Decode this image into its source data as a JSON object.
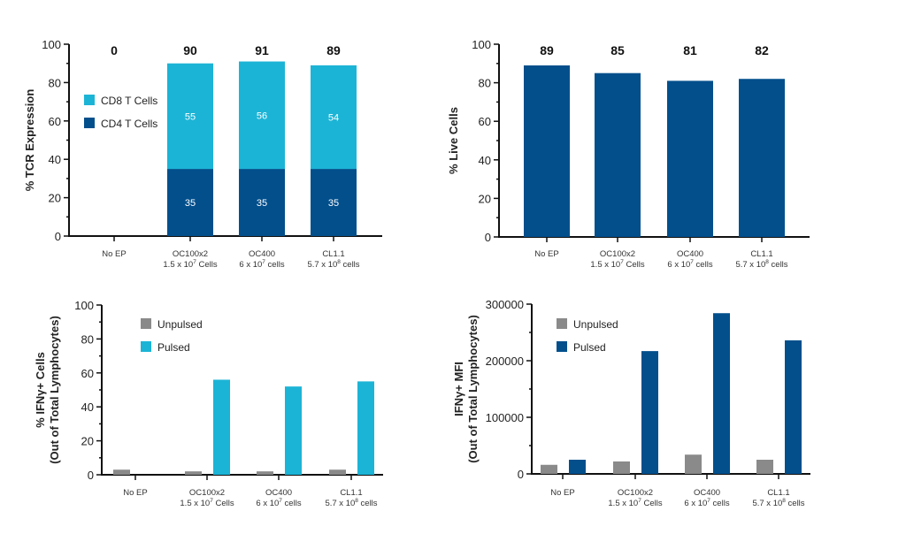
{
  "colors": {
    "cd8": "#1cb4d6",
    "cd4": "#024f8c",
    "live": "#024f8c",
    "unpulsed": "#8a8a8a",
    "pulsed_cyan": "#1cb4d6",
    "pulsed_blue": "#024f8c"
  },
  "chart_data": [
    {
      "id": "tcr",
      "type": "bar",
      "stacked": true,
      "title": "",
      "xlabel": "",
      "ylabel": "% TCR Expression",
      "ylim": [
        0,
        100
      ],
      "yticks": [
        0,
        20,
        40,
        60,
        80,
        100
      ],
      "ytick_labels": [
        "0",
        "20",
        "40",
        "60",
        "80",
        "100"
      ],
      "categories": [
        {
          "name": "No EP",
          "sub": "",
          "sup": "",
          "sub_after": ""
        },
        {
          "name": "OC100x2",
          "sub": "1.5 x 10",
          "sup": "7",
          "sub_after": " Cells"
        },
        {
          "name": "OC400",
          "sub": "6 x 10",
          "sup": "7",
          "sub_after": " cells"
        },
        {
          "name": "CL1.1",
          "sub": "5.7 x 10",
          "sup": "8",
          "sub_after": " cells"
        }
      ],
      "series": [
        {
          "name": "CD4 T Cells",
          "color_key": "cd4",
          "values": [
            0,
            35,
            35,
            35
          ],
          "labels": [
            "",
            "35",
            "35",
            "35"
          ]
        },
        {
          "name": "CD8 T Cells",
          "color_key": "cd8",
          "values": [
            0,
            55,
            56,
            54
          ],
          "labels": [
            "",
            "55",
            "56",
            "54"
          ]
        }
      ],
      "totals": [
        "0",
        "90",
        "91",
        "89"
      ],
      "legend": [
        {
          "name": "CD8 T Cells",
          "color_key": "cd8"
        },
        {
          "name": "CD4 T Cells",
          "color_key": "cd4"
        }
      ],
      "legend_position": "upper-left-inside",
      "grid": false
    },
    {
      "id": "live",
      "type": "bar",
      "stacked": false,
      "title": "",
      "xlabel": "",
      "ylabel": "% Live Cells",
      "ylim": [
        0,
        100
      ],
      "yticks": [
        0,
        20,
        40,
        60,
        80,
        100
      ],
      "ytick_labels": [
        "0",
        "20",
        "40",
        "60",
        "80",
        "100"
      ],
      "categories": [
        {
          "name": "No EP",
          "sub": "",
          "sup": "",
          "sub_after": ""
        },
        {
          "name": "OC100x2",
          "sub": "1.5 x 10",
          "sup": "7",
          "sub_after": " Cells"
        },
        {
          "name": "OC400",
          "sub": "6 x 10",
          "sup": "7",
          "sub_after": " cells"
        },
        {
          "name": "CL1.1",
          "sub": "5.7 x 10",
          "sup": "8",
          "sub_after": " cells"
        }
      ],
      "series": [
        {
          "name": "Live Cells",
          "color_key": "live",
          "values": [
            89,
            85,
            81,
            82
          ]
        }
      ],
      "totals": [
        "89",
        "85",
        "81",
        "82"
      ],
      "legend": [],
      "grid": false
    },
    {
      "id": "ifng_pct",
      "type": "bar",
      "stacked": false,
      "title": "",
      "xlabel": "",
      "ylabel": "% IFNγ+ Cells",
      "ylabel2": "(Out of Total Lymphocytes)",
      "ylim": [
        0,
        100
      ],
      "yticks": [
        0,
        20,
        40,
        60,
        80,
        100
      ],
      "ytick_labels": [
        "0",
        "20",
        "40",
        "60",
        "80",
        "100"
      ],
      "categories": [
        {
          "name": "No EP",
          "sub": "",
          "sup": "",
          "sub_after": ""
        },
        {
          "name": "OC100x2",
          "sub": "1.5 x 10",
          "sup": "7",
          "sub_after": " Cells"
        },
        {
          "name": "OC400",
          "sub": "6 x 10",
          "sup": "7",
          "sub_after": " cells"
        },
        {
          "name": "CL1.1",
          "sub": "5.7 x 10",
          "sup": "8",
          "sub_after": " cells"
        }
      ],
      "series": [
        {
          "name": "Unpulsed",
          "color_key": "unpulsed",
          "values": [
            3,
            2,
            2,
            3
          ]
        },
        {
          "name": "Pulsed",
          "color_key": "pulsed_cyan",
          "values": [
            0,
            56,
            52,
            55
          ]
        }
      ],
      "legend": [
        {
          "name": "Unpulsed",
          "color_key": "unpulsed"
        },
        {
          "name": "Pulsed",
          "color_key": "pulsed_cyan"
        }
      ],
      "legend_position": "upper-left-inside",
      "grid": false
    },
    {
      "id": "ifng_mfi",
      "type": "bar",
      "stacked": false,
      "title": "",
      "xlabel": "",
      "ylabel": "IFNγ+ MFI",
      "ylabel2": "(Out of Total Lymphocytes)",
      "ylim": [
        0,
        300000
      ],
      "yticks": [
        0,
        100000,
        200000,
        300000
      ],
      "ytick_labels": [
        "0",
        "100000",
        "200000",
        "300000"
      ],
      "minor_ticks": [
        50000,
        150000,
        250000
      ],
      "categories": [
        {
          "name": "No EP",
          "sub": "",
          "sup": "",
          "sub_after": ""
        },
        {
          "name": "OC100x2",
          "sub": "1.5 x 10",
          "sup": "7",
          "sub_after": " Cells"
        },
        {
          "name": "OC400",
          "sub": "6 x 10",
          "sup": "7",
          "sub_after": " cells"
        },
        {
          "name": "CL1.1",
          "sub": "5.7 x 10",
          "sup": "8",
          "sub_after": " cells"
        }
      ],
      "series": [
        {
          "name": "Unpulsed",
          "color_key": "unpulsed",
          "values": [
            16000,
            22000,
            34000,
            25000
          ]
        },
        {
          "name": "Pulsed",
          "color_key": "pulsed_blue",
          "values": [
            25000,
            217000,
            284000,
            236000
          ]
        }
      ],
      "legend": [
        {
          "name": "Unpulsed",
          "color_key": "unpulsed"
        },
        {
          "name": "Pulsed",
          "color_key": "pulsed_blue"
        }
      ],
      "legend_position": "upper-left-inside",
      "grid": false
    }
  ]
}
